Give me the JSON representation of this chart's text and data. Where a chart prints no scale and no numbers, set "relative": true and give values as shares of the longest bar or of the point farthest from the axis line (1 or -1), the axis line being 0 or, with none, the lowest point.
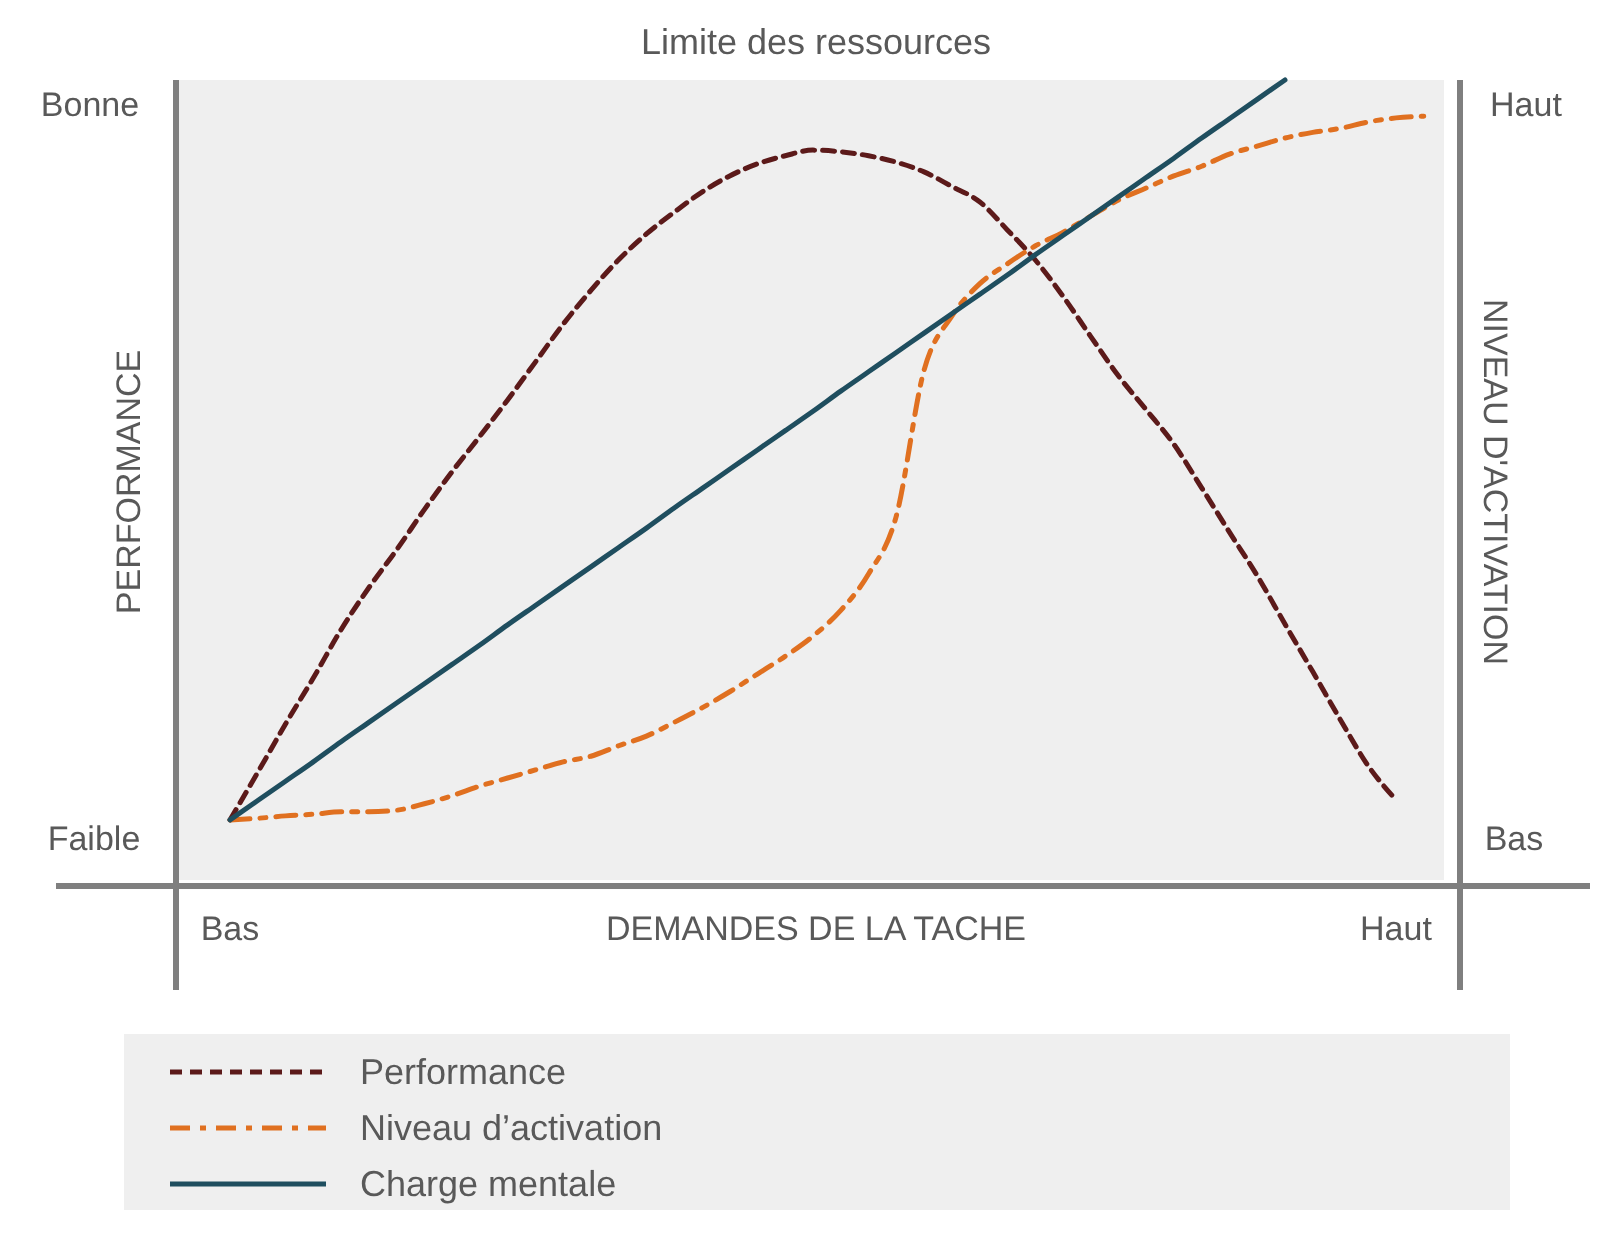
{
  "chart_data": {
    "type": "line",
    "relative": true,
    "title": "Limite des ressources",
    "xlabel": "DEMANDES DE LA TACHE",
    "ylabel": "PERFORMANCE",
    "y2label": "NIVEAU D'ACTIVATION",
    "categories": [
      "Bas",
      null,
      null,
      null,
      null,
      null,
      null,
      null,
      null,
      null,
      null,
      null,
      null,
      null,
      null,
      null,
      null,
      null,
      null,
      null,
      null,
      null,
      null,
      null,
      null,
      null,
      null,
      null,
      null,
      null,
      null,
      null,
      null,
      null,
      null,
      null,
      null,
      null,
      null,
      null,
      null,
      null,
      "Haut",
      null
    ],
    "annotations": [
      "Faible",
      "Bonne",
      "Bas",
      "Haut"
    ],
    "legend": "bottom",
    "series": [
      {
        "name": "Performance",
        "color": "#5c1a1a",
        "line_style": "dashed",
        "values": [
          0.082,
          0.141,
          0.201,
          0.258,
          0.318,
          0.37,
          0.417,
          0.467,
          0.514,
          0.558,
          0.603,
          0.65,
          0.697,
          0.739,
          0.777,
          0.809,
          0.836,
          0.861,
          0.881,
          0.896,
          0.906,
          0.913,
          0.911,
          0.906,
          0.898,
          0.886,
          0.868,
          0.849,
          0.814,
          0.777,
          0.732,
          0.682,
          0.633,
          0.591,
          0.548,
          0.494,
          0.439,
          0.385,
          0.325,
          0.266,
          0.206,
          0.149,
          0.107,
          null
        ]
      },
      {
        "name": "Niveau d’activation",
        "color": "#e07020",
        "line_style": "dashdot",
        "values": [
          0.082,
          0.084,
          0.087,
          0.089,
          0.092,
          0.092,
          0.094,
          0.102,
          0.112,
          0.124,
          0.134,
          0.144,
          0.154,
          0.161,
          0.174,
          0.186,
          0.203,
          0.221,
          0.241,
          0.263,
          0.285,
          0.31,
          0.342,
          0.387,
          0.459,
          0.64,
          0.707,
          0.747,
          0.772,
          0.794,
          0.811,
          0.831,
          0.851,
          0.866,
          0.881,
          0.893,
          0.908,
          0.918,
          0.928,
          0.935,
          0.94,
          0.948,
          0.953,
          0.955
        ]
      },
      {
        "name": "Charge mentale",
        "color": "#1f4e5f",
        "line_style": "solid",
        "values": [
          0.082,
          0.106,
          0.13,
          0.154,
          0.179,
          0.203,
          0.227,
          0.251,
          0.275,
          0.299,
          0.324,
          0.348,
          0.372,
          0.396,
          0.42,
          0.444,
          0.469,
          0.493,
          0.517,
          0.541,
          0.565,
          0.589,
          0.614,
          0.638,
          0.662,
          0.686,
          0.71,
          0.734,
          0.758,
          0.783,
          0.807,
          0.831,
          0.855,
          0.879,
          0.903,
          0.928,
          0.952,
          0.976,
          1,
          null,
          null,
          null,
          null,
          null
        ]
      }
    ]
  }
}
